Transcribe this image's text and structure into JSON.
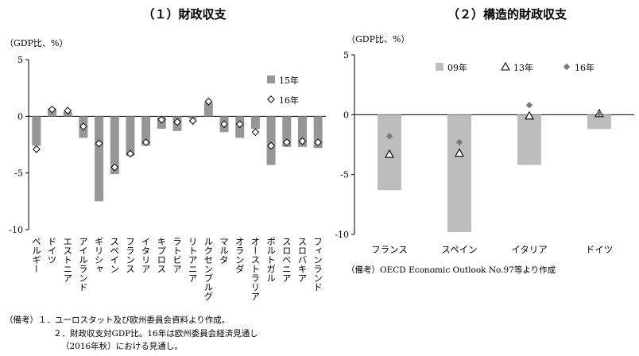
{
  "chart_data": [
    {
      "type": "bar",
      "title": "（１）財政収支",
      "unit_label": "（GDP比、%）",
      "ylim": [
        -10,
        5
      ],
      "yticks": [
        5,
        0,
        -5,
        -10
      ],
      "categories": [
        "ベルギー",
        "ドイツ",
        "エストニア",
        "アイルランド",
        "ギリシャ",
        "スペイン",
        "フランス",
        "イタリア",
        "キプロス",
        "ラトビア",
        "リトアニア",
        "ルクセンブルグ",
        "マルタ",
        "オランダ",
        "オーストラリア",
        "ポルトガル",
        "スロベニア",
        "スロバキア",
        "フィンランド"
      ],
      "series": [
        {
          "name": "15年",
          "kind": "bar",
          "color": "#969696",
          "values": [
            -2.6,
            0.7,
            0.4,
            -1.9,
            -7.5,
            -5.1,
            -3.5,
            -2.6,
            -1.1,
            -1.3,
            -0.2,
            1.2,
            -1.4,
            -1.9,
            -1.1,
            -4.3,
            -2.7,
            -2.7,
            -2.8
          ]
        },
        {
          "name": "16年",
          "kind": "marker",
          "marker": "diamond-open",
          "values": [
            -2.9,
            0.6,
            0.5,
            -0.9,
            -2.4,
            -4.5,
            -3.3,
            -2.3,
            -0.3,
            -0.5,
            -0.4,
            1.3,
            -0.7,
            -0.7,
            -1.4,
            -2.6,
            -2.3,
            -2.2,
            -2.3
          ]
        }
      ],
      "legend_position": "top-right",
      "notes": [
        "（備考）１．ユーロスタット及び欧州委員会資料より作成。",
        "２．財政収支対GDP比。16年は欧州委員会経済見通し",
        "（2016年秋）における見通し。"
      ]
    },
    {
      "type": "bar",
      "title": "（２）構造的財政収支",
      "unit_label": "（GDP比、%）",
      "ylim": [
        -10,
        5
      ],
      "yticks": [
        5,
        0,
        -5,
        -10
      ],
      "categories": [
        "フランス",
        "スペイン",
        "イタリア",
        "ドイツ"
      ],
      "series": [
        {
          "name": "09年",
          "kind": "bar",
          "color": "#bdbdbd",
          "values": [
            -6.3,
            -9.8,
            -4.2,
            -1.2
          ]
        },
        {
          "name": "13年",
          "kind": "marker",
          "marker": "triangle-open",
          "values": [
            -3.3,
            -3.2,
            -0.1,
            0.1
          ]
        },
        {
          "name": "16年",
          "kind": "marker",
          "marker": "diamond-filled",
          "color": "#7a7a7a",
          "values": [
            -1.8,
            -2.3,
            0.8,
            0.1
          ]
        }
      ],
      "legend_position": "top",
      "notes": [
        "（備考）OECD Economic Outlook No.97等より作成"
      ]
    }
  ]
}
